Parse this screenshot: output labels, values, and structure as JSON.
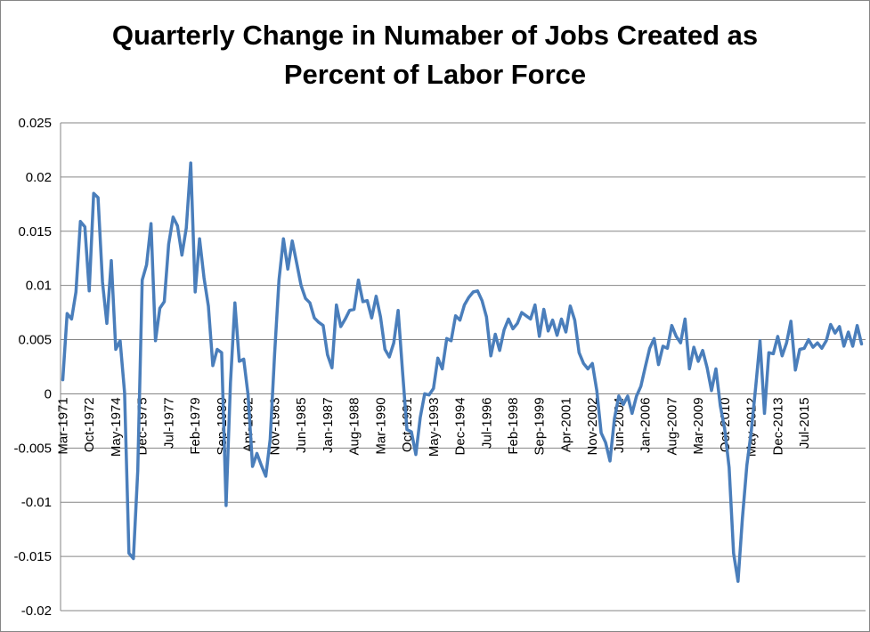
{
  "chart_data": {
    "type": "line",
    "title_lines": [
      "Quarterly Change in Numaber of Jobs Created as",
      "Percent of Labor Force"
    ],
    "xlabel": "",
    "ylabel": "",
    "ylim": [
      -0.02,
      0.025
    ],
    "yticks": [
      -0.02,
      -0.015,
      -0.01,
      -0.005,
      0,
      0.005,
      0.01,
      0.015,
      0.02,
      0.025
    ],
    "ytick_labels": [
      "-0.02",
      "-0.015",
      "-0.01",
      "-0.005",
      "0",
      "0.005",
      "0.01",
      "0.015",
      "0.02",
      "0.025"
    ],
    "xtick_labels": [
      "Mar-1971",
      "Oct-1972",
      "May-1974",
      "Dec-1975",
      "Jul-1977",
      "Feb-1979",
      "Sep-1980",
      "Apr-1982",
      "Nov-1983",
      "Jun-1985",
      "Jan-1987",
      "Aug-1988",
      "Mar-1990",
      "Oct-1991",
      "May-1993",
      "Dec-1994",
      "Jul-1996",
      "Feb-1998",
      "Sep-1999",
      "Apr-2001",
      "Nov-2002",
      "Jun-2004",
      "Jan-2006",
      "Aug-2007",
      "Mar-2009",
      "Oct-2010",
      "May-2012",
      "Dec-2013",
      "Jul-2015"
    ],
    "x_start": "Mar-1971",
    "frequency": "quarterly",
    "grid": true,
    "legend": "none",
    "line_color": "#4a7ebb",
    "series": [
      {
        "values": [
          0.0013,
          0.0074,
          0.0069,
          0.0094,
          0.0159,
          0.0154,
          0.0095,
          0.0185,
          0.0181,
          0.0103,
          0.0065,
          0.0123,
          0.0041,
          0.0049,
          0.0001,
          -0.0147,
          -0.0152,
          -0.0071,
          0.0105,
          0.0119,
          0.0157,
          0.0049,
          0.0079,
          0.0085,
          0.0138,
          0.0163,
          0.0155,
          0.0128,
          0.0153,
          0.0213,
          0.0094,
          0.0143,
          0.0107,
          0.0081,
          0.0026,
          0.0041,
          0.0038,
          -0.0103,
          0.001,
          0.0084,
          0.003,
          0.0032,
          -0.0001,
          -0.0067,
          -0.0055,
          -0.0066,
          -0.0076,
          -0.0042,
          0.0037,
          0.0105,
          0.0143,
          0.0115,
          0.0141,
          0.0121,
          0.01,
          0.0088,
          0.0084,
          0.007,
          0.0066,
          0.0063,
          0.0036,
          0.0024,
          0.0082,
          0.0062,
          0.0069,
          0.0077,
          0.0078,
          0.0105,
          0.0085,
          0.0086,
          0.007,
          0.009,
          0.0071,
          0.0041,
          0.0034,
          0.0047,
          0.0077,
          0.002,
          -0.0033,
          -0.0035,
          -0.0056,
          -0.0022,
          0.0,
          -0.0001,
          0.0005,
          0.0033,
          0.0023,
          0.0051,
          0.0049,
          0.0072,
          0.0068,
          0.0082,
          0.0089,
          0.0094,
          0.0095,
          0.0086,
          0.0071,
          0.0035,
          0.0055,
          0.004,
          0.0059,
          0.0069,
          0.006,
          0.0065,
          0.0075,
          0.0072,
          0.0069,
          0.0082,
          0.0053,
          0.0078,
          0.0058,
          0.0068,
          0.0054,
          0.0069,
          0.0057,
          0.0081,
          0.0068,
          0.0038,
          0.0028,
          0.0023,
          0.0028,
          0.0003,
          -0.0036,
          -0.0045,
          -0.0062,
          -0.0023,
          -0.0002,
          -0.001,
          -0.0002,
          -0.0018,
          -0.0002,
          0.0007,
          0.0025,
          0.0042,
          0.0051,
          0.0027,
          0.0044,
          0.0042,
          0.0063,
          0.0053,
          0.0047,
          0.0069,
          0.0023,
          0.0043,
          0.003,
          0.004,
          0.0024,
          0.0003,
          0.0023,
          -0.0011,
          -0.0033,
          -0.0068,
          -0.0147,
          -0.0173,
          -0.0115,
          -0.0066,
          -0.0035,
          0.0006,
          0.0049,
          -0.0018,
          0.0038,
          0.0037,
          0.0053,
          0.0035,
          0.0047,
          0.0067,
          0.0022,
          0.0041,
          0.0042,
          0.005,
          0.0043,
          0.0047,
          0.0042,
          0.0049,
          0.0064,
          0.0056,
          0.0062,
          0.0044,
          0.0057,
          0.0044,
          0.0063,
          0.0046
        ]
      }
    ]
  }
}
